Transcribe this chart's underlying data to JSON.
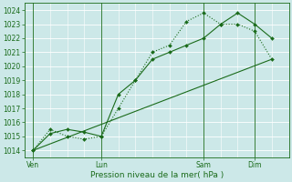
{
  "background_color": "#cce8e8",
  "grid_color": "#ffffff",
  "line_color": "#1a6b1a",
  "xlabel": "Pression niveau de la mer( hPa )",
  "ylim": [
    1013.5,
    1024.5
  ],
  "yticks": [
    1014,
    1015,
    1016,
    1017,
    1018,
    1019,
    1020,
    1021,
    1022,
    1023,
    1024
  ],
  "xtick_labels": [
    "Ven",
    "Lun",
    "Sam",
    "Dim"
  ],
  "xtick_positions": [
    0,
    4,
    10,
    13
  ],
  "xlim": [
    -0.5,
    15
  ],
  "series1": {
    "x": [
      0,
      1,
      2,
      3,
      4,
      5,
      6,
      7,
      8,
      9,
      10,
      11,
      12,
      13,
      14
    ],
    "y": [
      1014.0,
      1015.2,
      1015.5,
      1015.3,
      1015.0,
      1018.0,
      1019.0,
      1020.5,
      1021.0,
      1021.5,
      1022.0,
      1023.0,
      1023.8,
      1023.0,
      1022.0
    ],
    "linestyle": "-",
    "marker": "D",
    "markersize": 2.0,
    "linewidth": 0.8
  },
  "series2": {
    "x": [
      0,
      1,
      2,
      3,
      4,
      5,
      6,
      7,
      8,
      9,
      10,
      11,
      12,
      13,
      14
    ],
    "y": [
      1014.0,
      1015.5,
      1015.0,
      1014.8,
      1015.0,
      1017.0,
      1019.0,
      1021.0,
      1021.5,
      1023.2,
      1023.8,
      1023.0,
      1023.0,
      1022.5,
      1020.5
    ],
    "linestyle": ":",
    "marker": "D",
    "markersize": 2.0,
    "linewidth": 0.8
  },
  "series3": {
    "x": [
      0,
      14
    ],
    "y": [
      1014.0,
      1020.5
    ],
    "linestyle": "-",
    "marker": null,
    "linewidth": 0.8
  }
}
